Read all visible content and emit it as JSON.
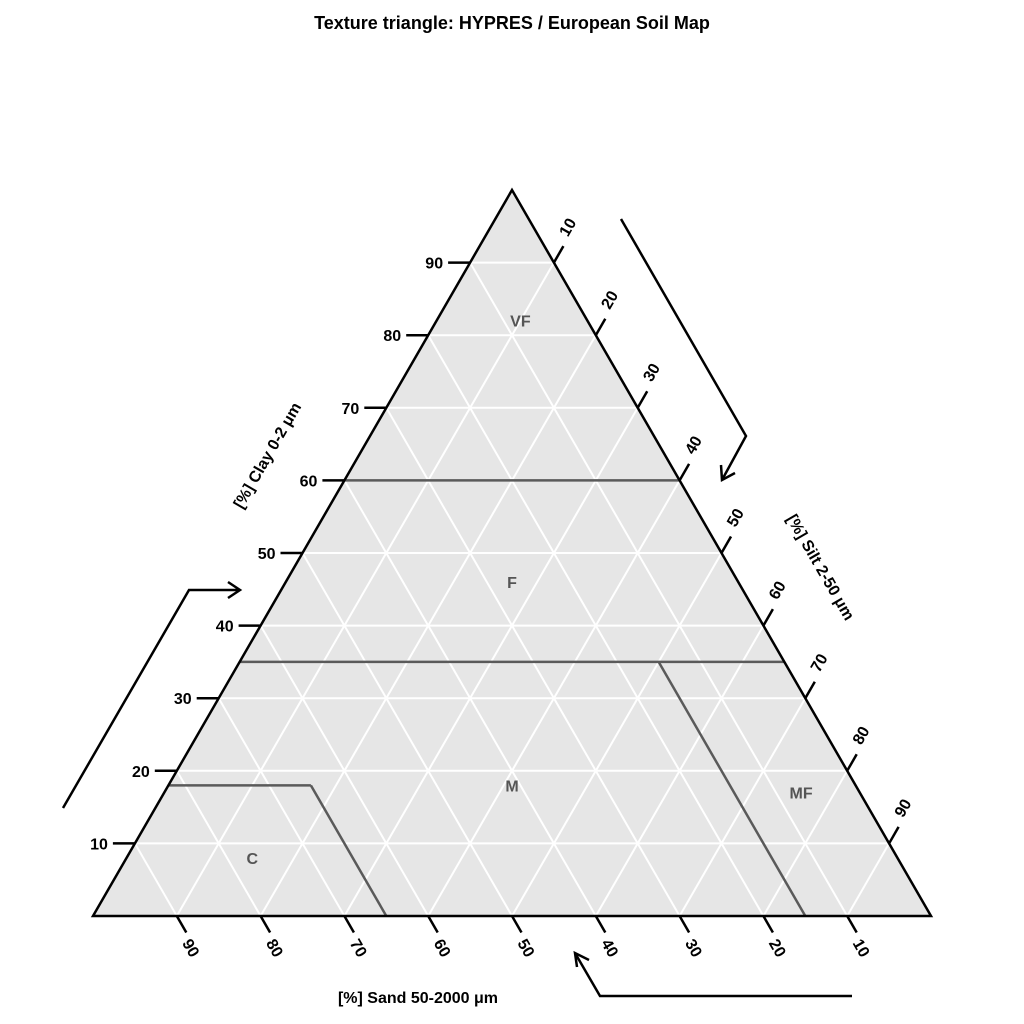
{
  "chart_data": {
    "type": "ternary",
    "title": "Texture triangle: HYPRES / European Soil Map",
    "axes": {
      "clay": {
        "label": "[%] Clay 0-2 μm",
        "ticks": [
          "10",
          "20",
          "30",
          "40",
          "50",
          "60",
          "70",
          "80",
          "90"
        ]
      },
      "silt": {
        "label": "[%] Silt 2-50 μm",
        "ticks": [
          "10",
          "20",
          "30",
          "40",
          "50",
          "60",
          "70",
          "80",
          "90"
        ]
      },
      "sand": {
        "label": "[%] Sand 50-2000 μm",
        "ticks": [
          "90",
          "80",
          "70",
          "60",
          "50",
          "40",
          "30",
          "20",
          "10"
        ]
      }
    },
    "grid": true,
    "grid_step": 10,
    "classes": [
      {
        "label": "VF",
        "clay": 82,
        "sand": 8
      },
      {
        "label": "F",
        "clay": 46,
        "sand": 27
      },
      {
        "label": "M",
        "clay": 18,
        "sand": 41
      },
      {
        "label": "MF",
        "clay": 17,
        "sand": 7
      },
      {
        "label": "C",
        "clay": 8,
        "sand": 77
      }
    ],
    "boundaries": [
      [
        {
          "clay": 60,
          "sand": 40
        },
        {
          "clay": 60,
          "sand": 0
        }
      ],
      [
        {
          "clay": 35,
          "sand": 65
        },
        {
          "clay": 35,
          "sand": 0
        }
      ],
      [
        {
          "clay": 35,
          "sand": 15
        },
        {
          "clay": 0,
          "sand": 15
        }
      ],
      [
        {
          "clay": 18,
          "sand": 82
        },
        {
          "clay": 18,
          "sand": 65
        }
      ],
      [
        {
          "clay": 18,
          "sand": 65
        },
        {
          "clay": 0,
          "sand": 65
        }
      ]
    ],
    "colors": {
      "background": "#e6e6e6",
      "grid": "#ffffff",
      "boundary": "#5a5a5a",
      "border": "#000000",
      "class_label": "#555555"
    }
  }
}
